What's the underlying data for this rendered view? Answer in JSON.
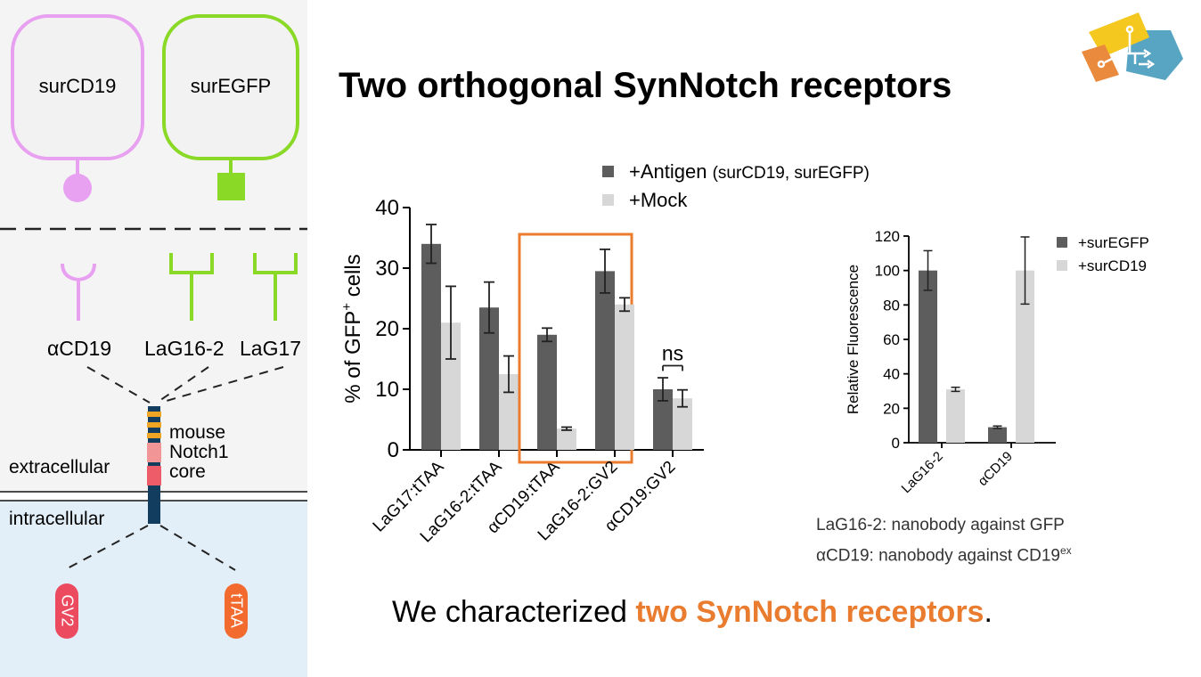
{
  "slide": {
    "title": "Two orthogonal SynNotch receptors",
    "bottom_prefix": "We characterized ",
    "bottom_highlight": "two SynNotch receptors",
    "bottom_suffix": ".",
    "note1": "LaG16-2: nanobody against GFP",
    "note2_main": "αCD19: nanobody against CD19",
    "note2_sup": "ex"
  },
  "diagram": {
    "target1": "surCD19",
    "target2": "surEGFP",
    "binder1": "αCD19",
    "binder2": "LaG16-2",
    "binder3": "LaG17",
    "core_line1": "mouse",
    "core_line2": "Notch1",
    "core_line3": "core",
    "extracellular": "extracellular",
    "intracellular": "intracellular",
    "tf1": "GV2",
    "tf2": "tTAA",
    "colors": {
      "pink": "#e8a0f0",
      "green": "#8ad927",
      "red": "#ec4a5f",
      "orange": "#f26a2e",
      "navy": "#123d5e",
      "membrane_bg": "#e2eff8"
    }
  },
  "chart_data": [
    {
      "type": "bar",
      "categories": [
        "LaG17:tTAA",
        "LaG16-2:tTAA",
        "αCD19:tTAA",
        "LaG16-2:GV2",
        "αCD19:GV2"
      ],
      "series": [
        {
          "name": "+Antigen",
          "name_note": "(surCD19, surEGFP)",
          "values": [
            34.0,
            23.5,
            19.0,
            29.5,
            10.0
          ],
          "errors": [
            3.2,
            4.2,
            1.1,
            3.6,
            1.9
          ],
          "color": "#5d5d5d"
        },
        {
          "name": "+Mock",
          "values": [
            21.0,
            12.5,
            3.5,
            24.0,
            8.5
          ],
          "errors": [
            6.0,
            3.0,
            0.25,
            1.1,
            1.4
          ],
          "color": "#d7d7d7"
        }
      ],
      "ylabel_main": "% of GFP",
      "ylabel_sup": "+",
      "ylabel_tail": " cells",
      "ylim": [
        0,
        40
      ],
      "yticks": [
        0,
        10,
        20,
        30,
        40
      ],
      "annotation": "ns",
      "highlight_category": "αCD19:tTAA",
      "highlight_color": "#e97c2e",
      "legend_position": "top"
    },
    {
      "type": "bar",
      "categories": [
        "LaG16-2",
        "αCD19"
      ],
      "series": [
        {
          "name": "+surEGFP",
          "values": [
            100,
            9
          ],
          "errors": [
            11.5,
            0.7
          ],
          "color": "#5d5d5d"
        },
        {
          "name": "+surCD19",
          "values": [
            31,
            100
          ],
          "errors": [
            1.2,
            19.5
          ],
          "color": "#d7d7d7"
        }
      ],
      "ylabel": "Relative Fluorescence",
      "ylim": [
        0,
        120
      ],
      "yticks": [
        0,
        20,
        40,
        60,
        80,
        100,
        120
      ],
      "legend_position": "top-right"
    }
  ],
  "logo": {
    "name": "team-logo",
    "colors": [
      "#f4c81e",
      "#e98a3c",
      "#58a5c3"
    ]
  }
}
